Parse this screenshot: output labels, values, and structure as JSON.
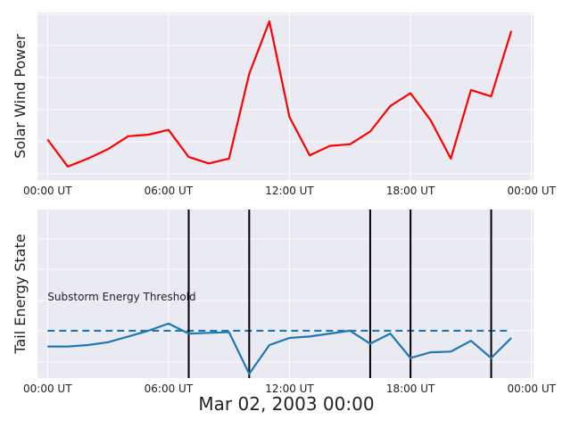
{
  "figure": {
    "xlabel": "Mar 02, 2003  00:00"
  },
  "chart_data": [
    {
      "type": "line",
      "ylabel": "Solar Wind Power",
      "x_ticks": [
        "00:00 UT",
        "06:00 UT",
        "12:00 UT",
        "18:00 UT",
        "00:00 UT"
      ],
      "x_range_hours": [
        -0.5,
        24.1
      ],
      "ylim": [
        0,
        100
      ],
      "grid": true,
      "y_ticks_labeled": false,
      "series": [
        {
          "color": "#ff0000",
          "x": [
            0,
            1,
            2,
            3,
            4,
            5,
            6,
            7,
            8,
            9,
            10,
            11,
            12,
            13,
            14,
            15,
            16,
            17,
            18,
            19,
            20,
            21,
            22,
            23
          ],
          "values": [
            21,
            4,
            9,
            15,
            23,
            24,
            27,
            10,
            6,
            9,
            62,
            95,
            35,
            11,
            17,
            18,
            26,
            42,
            50,
            33,
            9,
            52,
            48,
            89
          ]
        }
      ]
    },
    {
      "type": "line",
      "ylabel": "Tail Energy State",
      "x_ticks": [
        "00:00 UT",
        "06:00 UT",
        "12:00 UT",
        "18:00 UT",
        "00:00 UT"
      ],
      "x_range_hours": [
        -0.5,
        24.1
      ],
      "ylim": [
        0,
        100
      ],
      "grid": true,
      "y_ticks_labeled": false,
      "threshold": {
        "label": "Substorm Energy Threshold",
        "value": 28,
        "style": "dashed",
        "color": "#1f77b4"
      },
      "vertical_lines_hours": [
        7,
        10,
        16,
        18,
        22
      ],
      "series": [
        {
          "color": "#1f77b4",
          "x": [
            0,
            1,
            2,
            3,
            4,
            5,
            6,
            7,
            8,
            9,
            10,
            11,
            12,
            13,
            14,
            15,
            16,
            17,
            18,
            19,
            20,
            21,
            22,
            23
          ],
          "values": [
            17,
            17,
            18,
            20,
            24,
            28,
            33,
            26,
            26.5,
            27,
            -2,
            18,
            23,
            24,
            26,
            28,
            19,
            26,
            9,
            13,
            13.5,
            21,
            9,
            23
          ]
        }
      ]
    }
  ]
}
